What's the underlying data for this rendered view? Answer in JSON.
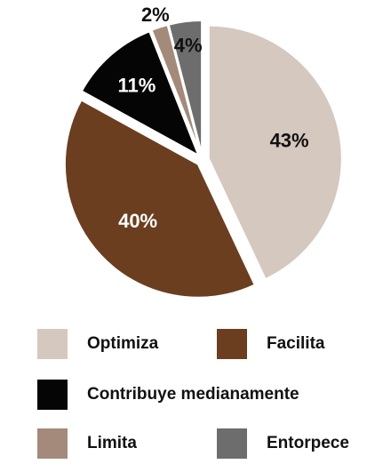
{
  "chart_data": {
    "type": "pie",
    "title": "",
    "slices": [
      {
        "label": "Optimiza",
        "value": 43,
        "display": "43%",
        "color": "#d5c8be",
        "label_color": "#111111"
      },
      {
        "label": "Facilita",
        "value": 40,
        "display": "40%",
        "color": "#6b3e20",
        "label_color": "#ffffff"
      },
      {
        "label": "Contribuye medianamente",
        "value": 11,
        "display": "11%",
        "color": "#050505",
        "label_color": "#ffffff"
      },
      {
        "label": "Limita",
        "value": 2,
        "display": "2%",
        "color": "#a48a7a",
        "label_color": "#111111"
      },
      {
        "label": "Entorpece",
        "value": 4,
        "display": "4%",
        "color": "#6d6d6d",
        "label_color": "#111111"
      }
    ],
    "legend_placement": "bottom"
  }
}
